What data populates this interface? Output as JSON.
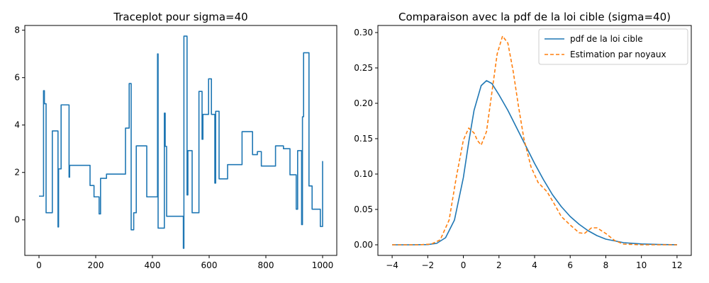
{
  "chart_data": [
    {
      "type": "line",
      "title": "Traceplot pour sigma=40",
      "xlabel": "",
      "ylabel": "",
      "xlim": [
        -50,
        1050
      ],
      "ylim": [
        -1.5,
        8.2
      ],
      "xticks": [
        0,
        200,
        400,
        600,
        800,
        1000
      ],
      "yticks": [
        0,
        2,
        4,
        6,
        8
      ],
      "grid": false,
      "series": [
        {
          "color": "#1f77b4",
          "style": "step",
          "points": [
            [
              0,
              1.0
            ],
            [
              16,
              1.0
            ],
            [
              16,
              5.45
            ],
            [
              19,
              5.45
            ],
            [
              19,
              4.9
            ],
            [
              25,
              4.9
            ],
            [
              25,
              0.3
            ],
            [
              47,
              0.3
            ],
            [
              47,
              3.75
            ],
            [
              67,
              3.75
            ],
            [
              67,
              -0.3
            ],
            [
              69,
              -0.3
            ],
            [
              69,
              2.15
            ],
            [
              78,
              2.15
            ],
            [
              78,
              4.85
            ],
            [
              106,
              4.85
            ],
            [
              106,
              1.8
            ],
            [
              108,
              1.8
            ],
            [
              108,
              2.3
            ],
            [
              180,
              2.3
            ],
            [
              180,
              1.45
            ],
            [
              194,
              1.45
            ],
            [
              194,
              0.97
            ],
            [
              212,
              0.97
            ],
            [
              212,
              0.25
            ],
            [
              217,
              0.25
            ],
            [
              217,
              1.75
            ],
            [
              238,
              1.75
            ],
            [
              238,
              1.93
            ],
            [
              305,
              1.93
            ],
            [
              305,
              3.87
            ],
            [
              318,
              3.87
            ],
            [
              318,
              5.75
            ],
            [
              325,
              5.75
            ],
            [
              325,
              -0.42
            ],
            [
              334,
              -0.42
            ],
            [
              334,
              0.3
            ],
            [
              343,
              0.3
            ],
            [
              343,
              3.12
            ],
            [
              380,
              3.12
            ],
            [
              380,
              0.97
            ],
            [
              418,
              0.97
            ],
            [
              418,
              7.0
            ],
            [
              420,
              7.0
            ],
            [
              420,
              -0.35
            ],
            [
              442,
              -0.35
            ],
            [
              442,
              4.5
            ],
            [
              445,
              4.5
            ],
            [
              445,
              3.1
            ],
            [
              450,
              3.1
            ],
            [
              450,
              0.15
            ],
            [
              509,
              0.15
            ],
            [
              509,
              -1.2
            ],
            [
              511,
              -1.2
            ],
            [
              511,
              7.75
            ],
            [
              522,
              7.75
            ],
            [
              522,
              1.05
            ],
            [
              525,
              1.05
            ],
            [
              525,
              2.92
            ],
            [
              540,
              2.92
            ],
            [
              540,
              0.3
            ],
            [
              564,
              0.3
            ],
            [
              564,
              5.42
            ],
            [
              575,
              5.42
            ],
            [
              575,
              3.4
            ],
            [
              578,
              3.4
            ],
            [
              578,
              4.45
            ],
            [
              598,
              4.45
            ],
            [
              598,
              5.95
            ],
            [
              608,
              5.95
            ],
            [
              608,
              4.45
            ],
            [
              620,
              4.45
            ],
            [
              620,
              1.55
            ],
            [
              623,
              1.55
            ],
            [
              623,
              4.58
            ],
            [
              635,
              4.58
            ],
            [
              635,
              1.73
            ],
            [
              665,
              1.73
            ],
            [
              665,
              2.33
            ],
            [
              716,
              2.33
            ],
            [
              716,
              3.72
            ],
            [
              753,
              3.72
            ],
            [
              753,
              2.75
            ],
            [
              770,
              2.75
            ],
            [
              770,
              2.88
            ],
            [
              784,
              2.88
            ],
            [
              784,
              2.27
            ],
            [
              834,
              2.27
            ],
            [
              834,
              3.12
            ],
            [
              862,
              3.12
            ],
            [
              862,
              3.0
            ],
            [
              885,
              3.0
            ],
            [
              885,
              1.9
            ],
            [
              907,
              1.9
            ],
            [
              907,
              0.45
            ],
            [
              912,
              0.45
            ],
            [
              912,
              2.92
            ],
            [
              926,
              2.92
            ],
            [
              926,
              -0.2
            ],
            [
              929,
              -0.2
            ],
            [
              929,
              4.35
            ],
            [
              933,
              4.35
            ],
            [
              933,
              7.05
            ],
            [
              952,
              7.05
            ],
            [
              952,
              1.43
            ],
            [
              963,
              1.43
            ],
            [
              963,
              0.45
            ],
            [
              992,
              0.45
            ],
            [
              992,
              -0.28
            ],
            [
              1000,
              -0.28
            ],
            [
              1000,
              2.48
            ]
          ]
        }
      ]
    },
    {
      "type": "line",
      "title": "Comparaison avec la pdf de la loi cible (sigma=40)",
      "xlabel": "",
      "ylabel": "",
      "xlim": [
        -4.8,
        12.8
      ],
      "ylim": [
        -0.015,
        0.31
      ],
      "xticks": [
        -4,
        -2,
        0,
        2,
        4,
        6,
        8,
        10,
        12
      ],
      "yticks": [
        0.0,
        0.05,
        0.1,
        0.15,
        0.2,
        0.25,
        0.3
      ],
      "grid": false,
      "legend_position": "top-right",
      "series": [
        {
          "name": "pdf de la loi cible",
          "color": "#1f77b4",
          "style": "solid",
          "points": [
            [
              -4,
              0.0
            ],
            [
              -3,
              0.0
            ],
            [
              -2,
              0.0003
            ],
            [
              -1.5,
              0.002
            ],
            [
              -1,
              0.01
            ],
            [
              -0.5,
              0.035
            ],
            [
              0,
              0.095
            ],
            [
              0.3,
              0.145
            ],
            [
              0.6,
              0.19
            ],
            [
              1.0,
              0.225
            ],
            [
              1.3,
              0.232
            ],
            [
              1.6,
              0.228
            ],
            [
              2.0,
              0.212
            ],
            [
              2.5,
              0.19
            ],
            [
              3.0,
              0.165
            ],
            [
              3.5,
              0.14
            ],
            [
              4.0,
              0.115
            ],
            [
              4.5,
              0.092
            ],
            [
              5.0,
              0.071
            ],
            [
              5.5,
              0.054
            ],
            [
              6.0,
              0.04
            ],
            [
              6.5,
              0.029
            ],
            [
              7.0,
              0.02
            ],
            [
              7.5,
              0.013
            ],
            [
              8.0,
              0.008
            ],
            [
              9.0,
              0.003
            ],
            [
              10.0,
              0.0012
            ],
            [
              11.0,
              0.0004
            ],
            [
              12.0,
              0.0001
            ]
          ]
        },
        {
          "name": "Estimation par noyaux",
          "color": "#ff7f0e",
          "style": "dashed",
          "points": [
            [
              -4,
              0.0
            ],
            [
              -2.5,
              0.0
            ],
            [
              -1.8,
              0.001
            ],
            [
              -1.3,
              0.007
            ],
            [
              -0.8,
              0.035
            ],
            [
              -0.4,
              0.095
            ],
            [
              0.0,
              0.148
            ],
            [
              0.3,
              0.165
            ],
            [
              0.6,
              0.158
            ],
            [
              0.8,
              0.147
            ],
            [
              1.0,
              0.141
            ],
            [
              1.3,
              0.16
            ],
            [
              1.6,
              0.215
            ],
            [
              1.9,
              0.27
            ],
            [
              2.2,
              0.295
            ],
            [
              2.5,
              0.285
            ],
            [
              2.8,
              0.245
            ],
            [
              3.1,
              0.195
            ],
            [
              3.4,
              0.15
            ],
            [
              3.8,
              0.11
            ],
            [
              4.2,
              0.088
            ],
            [
              4.7,
              0.075
            ],
            [
              5.1,
              0.058
            ],
            [
              5.5,
              0.04
            ],
            [
              6.0,
              0.028
            ],
            [
              6.5,
              0.017
            ],
            [
              6.8,
              0.016
            ],
            [
              7.2,
              0.024
            ],
            [
              7.5,
              0.024
            ],
            [
              8.0,
              0.016
            ],
            [
              8.5,
              0.006
            ],
            [
              9.0,
              0.001
            ],
            [
              10.0,
              0.0
            ],
            [
              12.0,
              0.0
            ]
          ]
        }
      ]
    }
  ]
}
